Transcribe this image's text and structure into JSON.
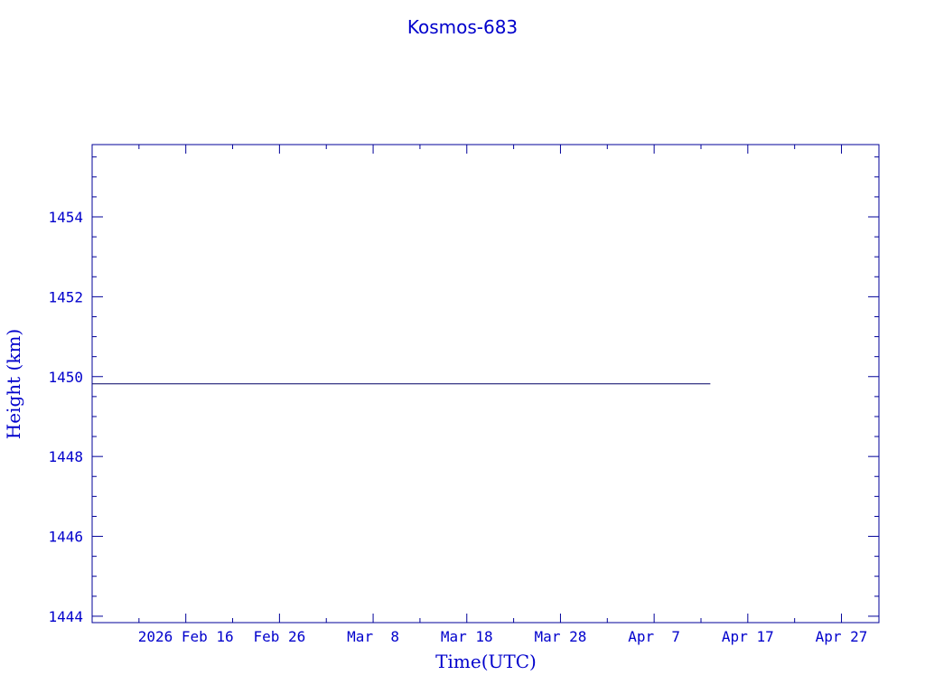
{
  "chart_data": {
    "type": "line",
    "title": "Kosmos-683",
    "xlabel": "Time(UTC)",
    "ylabel": "Height (km)",
    "xlim": [
      "2026-02-06",
      "2026-05-01"
    ],
    "ylim": [
      1443.84,
      1455.81
    ],
    "x_ticks": [
      {
        "date": "2026-02-16",
        "label": "2026 Feb 16"
      },
      {
        "date": "2026-02-26",
        "label": "Feb 26"
      },
      {
        "date": "2026-03-08",
        "label": "Mar  8"
      },
      {
        "date": "2026-03-18",
        "label": "Mar 18"
      },
      {
        "date": "2026-03-28",
        "label": "Mar 28"
      },
      {
        "date": "2026-04-07",
        "label": "Apr  7"
      },
      {
        "date": "2026-04-17",
        "label": "Apr 17"
      },
      {
        "date": "2026-04-27",
        "label": "Apr 27"
      }
    ],
    "y_ticks": [
      "1444",
      "1446",
      "1448",
      "1450",
      "1452",
      "1454"
    ],
    "grid": false,
    "series": [
      {
        "x": [
          "2026-02-06",
          "2026-04-13"
        ],
        "y": [
          1449.82,
          1449.82
        ]
      }
    ],
    "colors": {
      "axis": "#000099",
      "text": "#0000cc",
      "line": "#000066"
    }
  }
}
